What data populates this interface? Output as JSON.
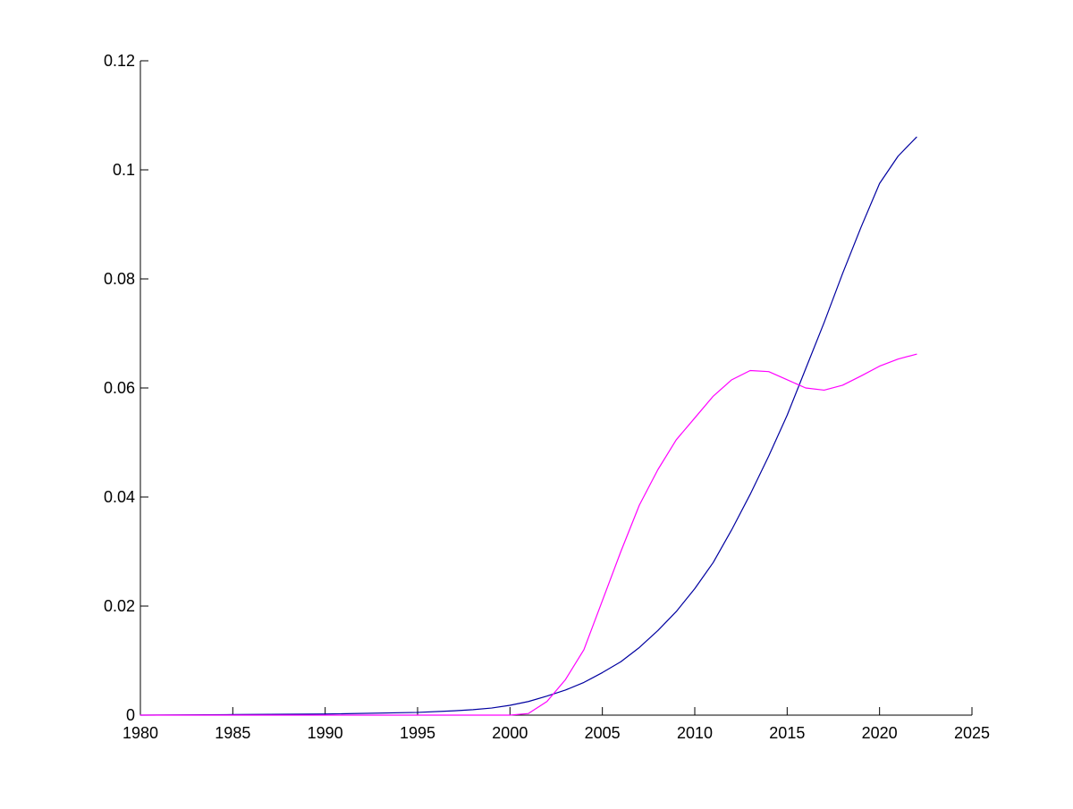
{
  "chart_data": {
    "type": "line",
    "title": "",
    "xlabel": "",
    "ylabel": "",
    "xlim": [
      1980,
      2025
    ],
    "ylim": [
      0,
      0.12
    ],
    "xticks": [
      1980,
      1985,
      1990,
      1995,
      2000,
      2005,
      2010,
      2015,
      2020,
      2025
    ],
    "xtick_labels": [
      "1980",
      "1985",
      "1990",
      "1995",
      "2000",
      "2005",
      "2010",
      "2015",
      "2020",
      "2025"
    ],
    "yticks": [
      0,
      0.02,
      0.04,
      0.06,
      0.08,
      0.1,
      0.12
    ],
    "ytick_labels": [
      "0",
      "0.02",
      "0.04",
      "0.06",
      "0.08",
      "0.1",
      "0.12"
    ],
    "grid": false,
    "legend": "none",
    "series": [
      {
        "color": "#0000a0",
        "x": [
          1980,
          1985,
          1990,
          1995,
          1997,
          1998,
          1999,
          2000,
          2001,
          2002,
          2003,
          2004,
          2005,
          2006,
          2007,
          2008,
          2009,
          2010,
          2011,
          2012,
          2013,
          2014,
          2015,
          2016,
          2017,
          2018,
          2019,
          2020,
          2021,
          2022
        ],
        "values": [
          0.0,
          0.0001,
          0.0002,
          0.0005,
          0.0008,
          0.001,
          0.0013,
          0.0018,
          0.0025,
          0.0035,
          0.0046,
          0.006,
          0.0078,
          0.0098,
          0.0124,
          0.0155,
          0.019,
          0.0232,
          0.028,
          0.034,
          0.0405,
          0.0475,
          0.055,
          0.0635,
          0.072,
          0.081,
          0.0895,
          0.0975,
          0.1025,
          0.106
        ]
      },
      {
        "color": "#ff00ff",
        "x": [
          1980,
          2000,
          2001,
          2002,
          2003,
          2004,
          2005,
          2006,
          2007,
          2008,
          2009,
          2010,
          2011,
          2012,
          2013,
          2014,
          2015,
          2016,
          2017,
          2018,
          2019,
          2020,
          2021,
          2022
        ],
        "values": [
          0.0,
          0.0,
          0.0003,
          0.0025,
          0.0065,
          0.012,
          0.021,
          0.03,
          0.0385,
          0.045,
          0.0505,
          0.0545,
          0.0585,
          0.0615,
          0.0632,
          0.063,
          0.0615,
          0.06,
          0.0596,
          0.0605,
          0.0622,
          0.064,
          0.0653,
          0.0662
        ]
      }
    ]
  }
}
